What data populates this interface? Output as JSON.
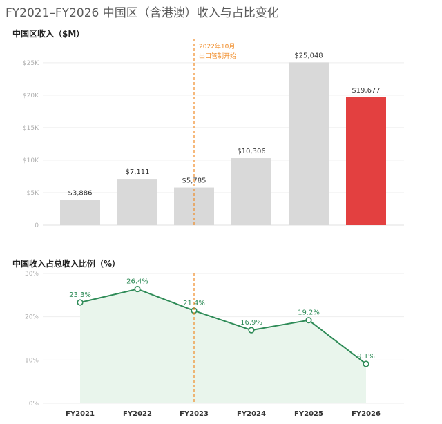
{
  "title": "FY2021–FY2026 中国区（含港澳）收入与占比变化",
  "colors": {
    "bar_default": "#d9d9d9",
    "bar_highlight": "#e34040",
    "highlight_label": "#d93a3a",
    "line": "#2e8b57",
    "area_fill": "#e9f5ec",
    "annotation": "#f08a24",
    "grid": "#eeeeee"
  },
  "chart_data": [
    {
      "type": "bar",
      "title": "中国区收入（$M）",
      "categories": [
        "FY2021",
        "FY2022",
        "FY2023",
        "FY2024",
        "FY2025",
        "FY2026"
      ],
      "values": [
        3886,
        7111,
        5785,
        10306,
        25048,
        19677
      ],
      "value_labels": [
        "$3,886",
        "$7,111",
        "$5,785",
        "$10,306",
        "$25,048",
        "$19,677"
      ],
      "highlight_index": 5,
      "ylim": [
        0,
        27000
      ],
      "yticks": [
        0,
        5000,
        10000,
        15000,
        20000,
        25000
      ],
      "ytick_labels": [
        "0",
        "$5K",
        "$10K",
        "$15K",
        "$20K",
        "$25K"
      ],
      "annotation": {
        "lines": [
          "2022年10月",
          "出口管制开始"
        ]
      }
    },
    {
      "type": "area",
      "title": "中国收入占总收入比例（%）",
      "categories": [
        "FY2021",
        "FY2022",
        "FY2023",
        "FY2024",
        "FY2025",
        "FY2026"
      ],
      "values": [
        23.3,
        26.4,
        21.4,
        16.9,
        19.2,
        9.1
      ],
      "value_labels": [
        "23.3%",
        "26.4%",
        "21.4%",
        "16.9%",
        "19.2%",
        "9.1%"
      ],
      "ylim": [
        0,
        30
      ],
      "yticks": [
        0,
        10,
        20,
        30
      ],
      "ytick_labels": [
        "0%",
        "10%",
        "20%",
        "30%"
      ],
      "xtick_labels": [
        "FY2021",
        "FY2022",
        "FY2023",
        "FY2024",
        "FY2025",
        "FY2026"
      ]
    }
  ]
}
